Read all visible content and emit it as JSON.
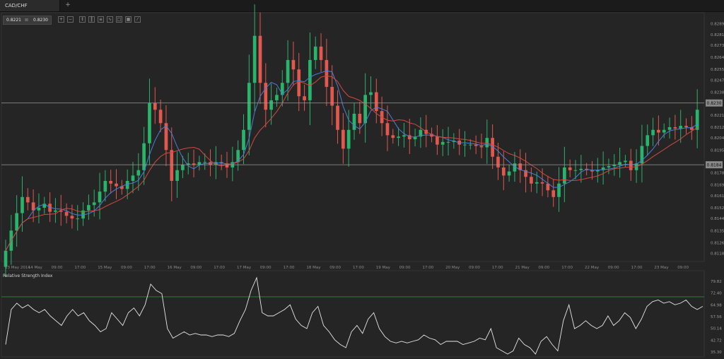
{
  "tab": {
    "label": "CAD/CHF",
    "add": "+"
  },
  "quote": {
    "bid": "0.8221",
    "ask": "0.8230"
  },
  "toolbar_icons": [
    "zoom-in-icon",
    "zoom-out-icon",
    "cursor-icon",
    "candles-icon",
    "bars-icon",
    "line-chart-icon",
    "templates-icon",
    "indicators-icon",
    "draw-icon"
  ],
  "colors": {
    "up": "#29b36b",
    "down": "#e0584e",
    "ma_fast": "#4a7ed6",
    "ma_slow": "#d04a40",
    "grid": "#3a3a3a",
    "rsi_upper": "#2f7a3a",
    "rsi_lower": "#c84040"
  },
  "chart_data": [
    {
      "type": "candlestick",
      "pair": "CAD/CHF",
      "x_tick_labels": [
        "13 May 2014",
        "14 May",
        "09:00",
        "17:00",
        "15 May",
        "09:00",
        "17:00",
        "16 May",
        "09:00",
        "17:00",
        "17 May",
        "09:00",
        "17:00",
        "18 May",
        "09:00",
        "17:00",
        "19 May",
        "09:00",
        "17:00",
        "20 May",
        "09:00",
        "17:00",
        "21 May",
        "09:00",
        "17:00",
        "22 May",
        "09:00",
        "17:00",
        "23 May",
        "09:00"
      ],
      "y_tick_labels": [
        "0.8289",
        "0.8281",
        "0.8273",
        "0.8264",
        "0.8255",
        "0.8247",
        "0.8238",
        "0.8221",
        "0.8212",
        "0.8204",
        "0.8195",
        "0.8178",
        "0.8169",
        "0.8161",
        "0.8152",
        "0.8144",
        "0.8135",
        "0.8126",
        "0.8118"
      ],
      "ylim": [
        0.8112,
        0.8293
      ],
      "levels": [
        {
          "value": 0.823,
          "label": "0.8230"
        },
        {
          "value": 0.8184,
          "label": "0.8184"
        }
      ],
      "close": [
        0.812,
        0.8135,
        0.8148,
        0.816,
        0.8156,
        0.815,
        0.8152,
        0.8155,
        0.8149,
        0.815,
        0.8149,
        0.8146,
        0.8144,
        0.8144,
        0.815,
        0.8154,
        0.8156,
        0.8164,
        0.8172,
        0.817,
        0.8168,
        0.8166,
        0.8172,
        0.8176,
        0.818,
        0.82,
        0.823,
        0.8225,
        0.8215,
        0.8195,
        0.8172,
        0.818,
        0.8184,
        0.8185,
        0.8184,
        0.8186,
        0.8186,
        0.8184,
        0.8186,
        0.8185,
        0.8182,
        0.8186,
        0.8195,
        0.821,
        0.8245,
        0.828,
        0.8245,
        0.8225,
        0.8232,
        0.8236,
        0.8245,
        0.8262,
        0.8255,
        0.8235,
        0.8232,
        0.8262,
        0.8272,
        0.8262,
        0.8242,
        0.8228,
        0.821,
        0.8196,
        0.821,
        0.8222,
        0.8215,
        0.8236,
        0.8238,
        0.8224,
        0.8215,
        0.8206,
        0.8204,
        0.8205,
        0.8206,
        0.8203,
        0.8205,
        0.821,
        0.8207,
        0.8205,
        0.8199,
        0.8201,
        0.8201,
        0.8202,
        0.8199,
        0.8199,
        0.8199,
        0.8198,
        0.8197,
        0.8204,
        0.819,
        0.8182,
        0.8176,
        0.8179,
        0.8185,
        0.818,
        0.8175,
        0.817,
        0.8171,
        0.817,
        0.8165,
        0.816,
        0.817,
        0.8182,
        0.818,
        0.818,
        0.8181,
        0.818,
        0.8179,
        0.818,
        0.8182,
        0.8183,
        0.8184,
        0.8186,
        0.8187,
        0.818,
        0.8185,
        0.8198,
        0.8206,
        0.821,
        0.8208,
        0.821,
        0.8212,
        0.8211,
        0.8213,
        0.8212,
        0.821,
        0.8225
      ],
      "series": [
        {
          "name": "",
          "type": "moving-average-fast"
        },
        {
          "name": "",
          "type": "moving-average-slow"
        }
      ]
    },
    {
      "type": "line",
      "title": "Relative Strength Index",
      "y_tick_labels": [
        "79.82",
        "72.40",
        "64.98",
        "57.56",
        "50.14",
        "42.72",
        "35.30"
      ],
      "ylim": [
        34,
        82
      ],
      "levels": [
        70,
        30
      ],
      "values": [
        40,
        62,
        66,
        63,
        65,
        62,
        60,
        62,
        58,
        55,
        52,
        58,
        62,
        58,
        60,
        55,
        52,
        48,
        50,
        60,
        56,
        52,
        60,
        63,
        58,
        65,
        78,
        74,
        72,
        50,
        44,
        46,
        48,
        46,
        47,
        46,
        46,
        45,
        46,
        46,
        45,
        47,
        55,
        62,
        74,
        82,
        60,
        58,
        58,
        60,
        62,
        65,
        56,
        52,
        50,
        60,
        64,
        52,
        48,
        43,
        40,
        38,
        48,
        52,
        47,
        56,
        60,
        50,
        45,
        42,
        41,
        42,
        41,
        42,
        43,
        46,
        44,
        43,
        40,
        42,
        42,
        42,
        40,
        41,
        42,
        44,
        43,
        50,
        38,
        36,
        34,
        36,
        44,
        40,
        38,
        34,
        42,
        45,
        40,
        36,
        55,
        65,
        50,
        52,
        55,
        52,
        50,
        52,
        58,
        52,
        55,
        60,
        57,
        50,
        56,
        64,
        67,
        68,
        66,
        67,
        65,
        66,
        68,
        64,
        62,
        64
      ]
    }
  ]
}
